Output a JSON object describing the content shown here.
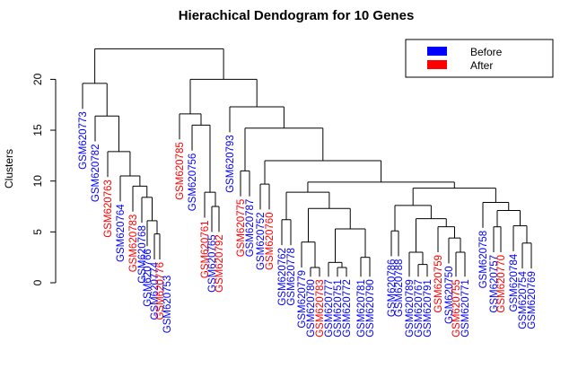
{
  "chart_data": {
    "type": "dendrogram",
    "title": "Hierachical Dendogram for 10 Genes",
    "ylabel": "Clusters",
    "ylim": [
      0,
      23
    ],
    "yticks": [
      0,
      5,
      10,
      15,
      20
    ],
    "legend": {
      "placement": "top-right",
      "entries": [
        {
          "label": "Before",
          "color": "#0000ff"
        },
        {
          "label": "After",
          "color": "#ff0000"
        }
      ]
    },
    "leaves": [
      {
        "label": "GSM620773",
        "group": "Before"
      },
      {
        "label": "GSM620782",
        "group": "Before"
      },
      {
        "label": "GSM620763",
        "group": "After"
      },
      {
        "label": "GSM620764",
        "group": "Before"
      },
      {
        "label": "GSM620783",
        "group": "After"
      },
      {
        "label": "GSM620768",
        "group": "Before"
      },
      {
        "label": "GSM620766",
        "group": "Before"
      },
      {
        "label": "GSM620774",
        "group": "Before"
      },
      {
        "label": "GSM620776",
        "group": "After"
      },
      {
        "label": "GSM620753",
        "group": "Before"
      },
      {
        "label": "GSM620785",
        "group": "After"
      },
      {
        "label": "GSM620756",
        "group": "Before"
      },
      {
        "label": "GSM620761",
        "group": "After"
      },
      {
        "label": "GSM620765",
        "group": "Before"
      },
      {
        "label": "GSM620792",
        "group": "After"
      },
      {
        "label": "GSM620793",
        "group": "Before"
      },
      {
        "label": "GSM620775",
        "group": "After"
      },
      {
        "label": "GSM620787",
        "group": "Before"
      },
      {
        "label": "GSM620752",
        "group": "Before"
      },
      {
        "label": "GSM620760",
        "group": "After"
      },
      {
        "label": "GSM620762",
        "group": "Before"
      },
      {
        "label": "GSM620778",
        "group": "Before"
      },
      {
        "label": "GSM620779",
        "group": "Before"
      },
      {
        "label": "GSM620780",
        "group": "Before"
      },
      {
        "label": "GSM620783",
        "group": "After"
      },
      {
        "label": "GSM620777",
        "group": "Before"
      },
      {
        "label": "GSM620751",
        "group": "Before"
      },
      {
        "label": "GSM620772",
        "group": "Before"
      },
      {
        "label": "GSM620781",
        "group": "Before"
      },
      {
        "label": "GSM620790",
        "group": "Before"
      },
      {
        "label": "GSM620786",
        "group": "Before"
      },
      {
        "label": "GSM620788",
        "group": "Before"
      },
      {
        "label": "GSM620789",
        "group": "Before"
      },
      {
        "label": "GSM620767",
        "group": "Before"
      },
      {
        "label": "GSM620791",
        "group": "Before"
      },
      {
        "label": "GSM620759",
        "group": "After"
      },
      {
        "label": "GSM620750",
        "group": "Before"
      },
      {
        "label": "GSM620755",
        "group": "After"
      },
      {
        "label": "GSM620771",
        "group": "Before"
      },
      {
        "label": "GSM620758",
        "group": "Before"
      },
      {
        "label": "GSM620757",
        "group": "Before"
      },
      {
        "label": "GSM620770",
        "group": "After"
      },
      {
        "label": "GSM620784",
        "group": "Before"
      },
      {
        "label": "GSM620754",
        "group": "Before"
      },
      {
        "label": "GSM620769",
        "group": "Before"
      }
    ],
    "merges": [
      {
        "id": "n1",
        "a": 7,
        "b": 8,
        "h": 4.8
      },
      {
        "id": "n2",
        "a": 6,
        "b": "n1",
        "h": 6.1
      },
      {
        "id": "n3",
        "a": 5,
        "b": "n2",
        "h": 8.4
      },
      {
        "id": "n4",
        "a": 4,
        "b": "n3",
        "h": 9.5
      },
      {
        "id": "n5",
        "a": 3,
        "b": "n4",
        "h": 10.5
      },
      {
        "id": "n6",
        "a": 2,
        "b": "n5",
        "h": 12.9
      },
      {
        "id": "n7",
        "a": 1,
        "b": "n6",
        "h": 16.4
      },
      {
        "id": "n8",
        "a": 0,
        "b": "n7",
        "h": 19.6
      },
      {
        "id": "n9",
        "a": 13,
        "b": 14,
        "h": 7.5
      },
      {
        "id": "n10",
        "a": 12,
        "b": "n9",
        "h": 8.9
      },
      {
        "id": "n11",
        "a": 11,
        "b": "n10",
        "h": 15.5
      },
      {
        "id": "n12",
        "a": 10,
        "b": "n11",
        "h": 16.6
      },
      {
        "id": "n13",
        "a": 16,
        "b": 17,
        "h": 11.0
      },
      {
        "id": "n14",
        "a": 18,
        "b": 19,
        "h": 9.7
      },
      {
        "id": "n15",
        "a": 20,
        "b": 21,
        "h": 6.2
      },
      {
        "id": "n16",
        "a": 23,
        "b": 24,
        "h": 1.5
      },
      {
        "id": "n17",
        "a": 22,
        "b": "n16",
        "h": 4.0
      },
      {
        "id": "n18",
        "a": 26,
        "b": 27,
        "h": 1.5
      },
      {
        "id": "n19",
        "a": 25,
        "b": "n18",
        "h": 2.0
      },
      {
        "id": "n20",
        "a": 28,
        "b": 29,
        "h": 2.5
      },
      {
        "id": "n21",
        "a": "n19",
        "b": "n20",
        "h": 5.3
      },
      {
        "id": "n22",
        "a": "n17",
        "b": "n21",
        "h": 7.3
      },
      {
        "id": "n23",
        "a": "n15",
        "b": "n22",
        "h": 8.9
      },
      {
        "id": "n24",
        "a": 30,
        "b": 31,
        "h": 5.1
      },
      {
        "id": "n25",
        "a": 33,
        "b": 34,
        "h": 1.8
      },
      {
        "id": "n26",
        "a": 32,
        "b": "n25",
        "h": 3.0
      },
      {
        "id": "n27",
        "a": 37,
        "b": 38,
        "h": 3.0
      },
      {
        "id": "n28",
        "a": 36,
        "b": "n27",
        "h": 4.4
      },
      {
        "id": "n29",
        "a": 35,
        "b": "n28",
        "h": 5.5
      },
      {
        "id": "n30",
        "a": "n26",
        "b": "n29",
        "h": 6.3
      },
      {
        "id": "n31",
        "a": "n24",
        "b": "n30",
        "h": 7.6
      },
      {
        "id": "n32",
        "a": 40,
        "b": 41,
        "h": 5.5
      },
      {
        "id": "n33",
        "a": 43,
        "b": 44,
        "h": 3.9
      },
      {
        "id": "n34",
        "a": 42,
        "b": "n33",
        "h": 5.6
      },
      {
        "id": "n35",
        "a": "n32",
        "b": "n34",
        "h": 7.1
      },
      {
        "id": "n36",
        "a": 39,
        "b": "n35",
        "h": 7.9
      },
      {
        "id": "n37",
        "a": "n31",
        "b": "n36",
        "h": 9.3
      },
      {
        "id": "n38",
        "a": "n23",
        "b": "n37",
        "h": 9.9
      },
      {
        "id": "n39",
        "a": "n14",
        "b": "n38",
        "h": 12.0
      },
      {
        "id": "n40",
        "a": "n13",
        "b": "n39",
        "h": 15.2
      },
      {
        "id": "n41",
        "a": 15,
        "b": "n40",
        "h": 17.3
      },
      {
        "id": "n42",
        "a": "n12",
        "b": "n41",
        "h": 20.0
      },
      {
        "id": "n43",
        "a": "n8",
        "b": "n42",
        "h": 23.0
      }
    ]
  }
}
